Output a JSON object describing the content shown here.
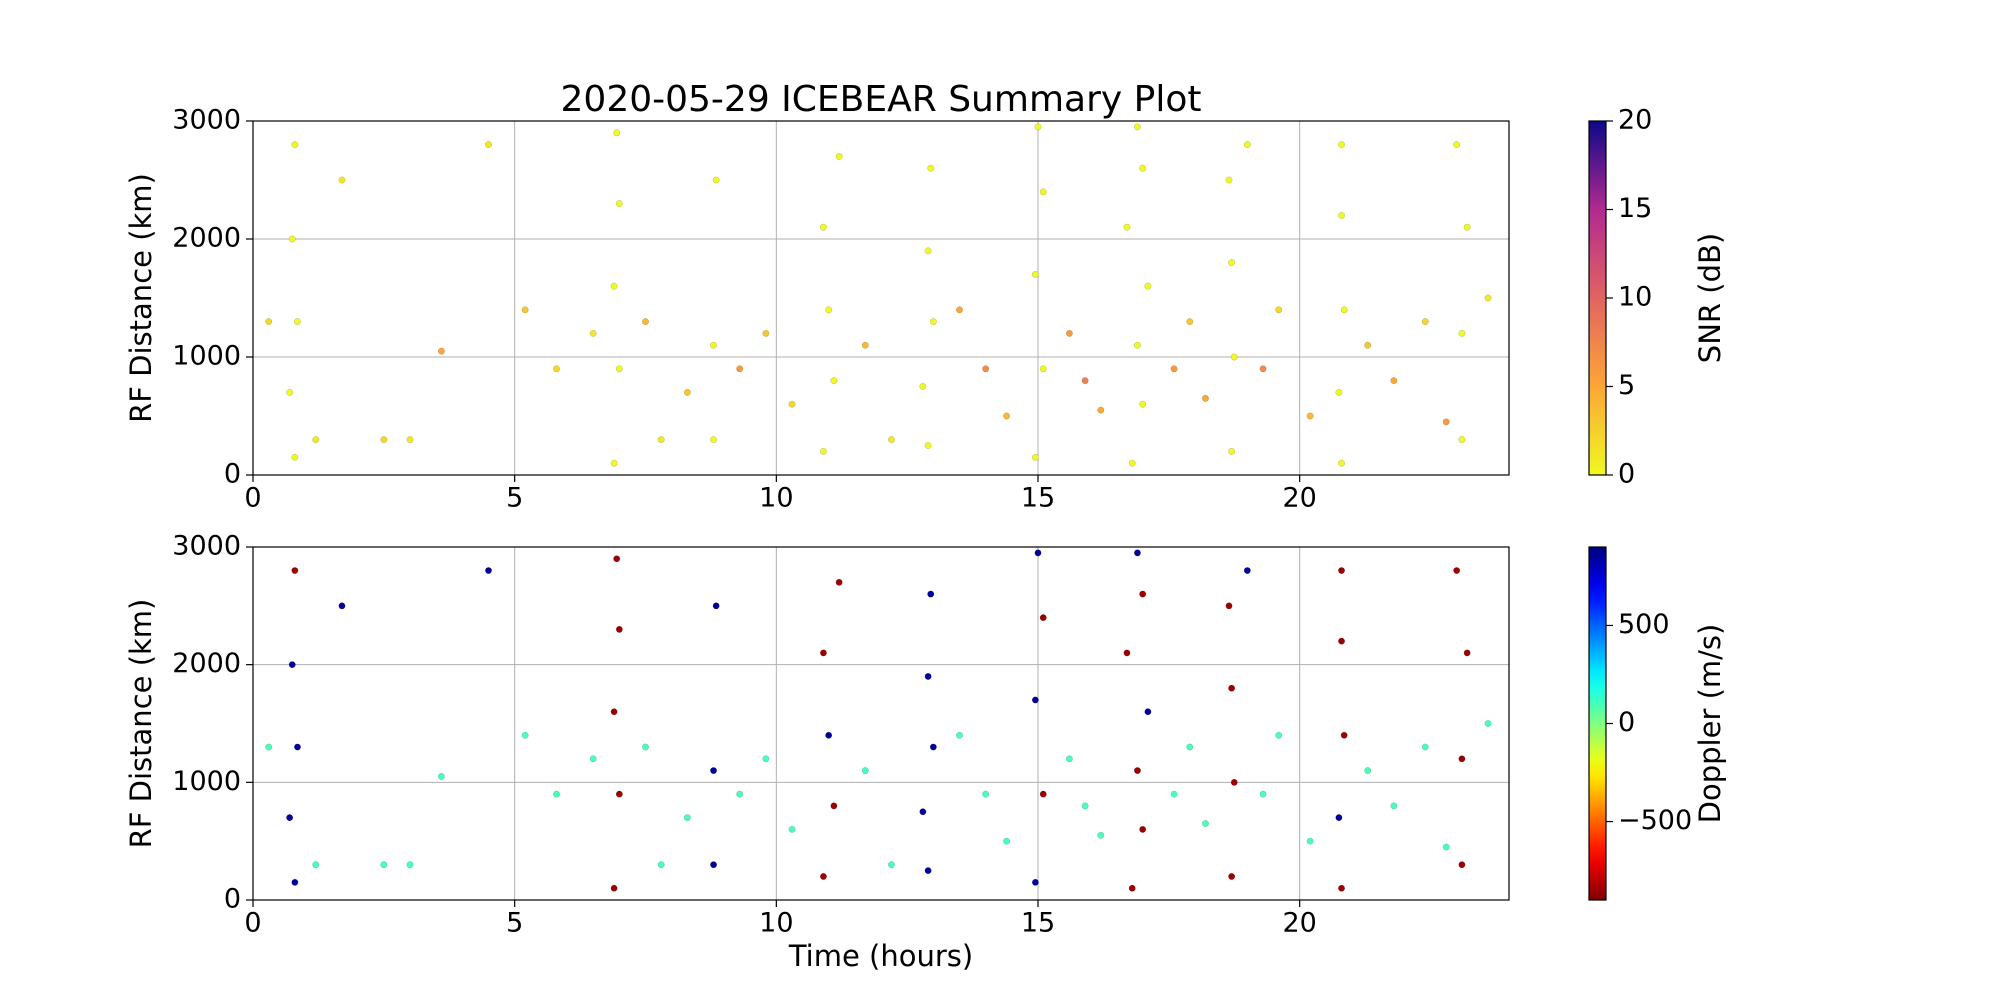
{
  "chart_data": [
    {
      "type": "scatter",
      "title": "2020-05-29 ICEBEAR Summary Plot",
      "ylabel": "RF Distance (km)",
      "x": [
        0.8,
        0.7,
        0.85,
        0.75,
        0.8,
        6.9,
        7.0,
        6.9,
        7.0,
        6.95,
        8.8,
        8.8,
        8.85,
        10.9,
        11.1,
        11.0,
        10.9,
        11.2,
        12.9,
        12.8,
        13.0,
        12.9,
        12.95,
        14.95,
        15.1,
        14.95,
        15.1,
        15.0,
        16.8,
        17.0,
        16.9,
        17.1,
        16.7,
        17.0,
        16.9,
        18.7,
        18.75,
        18.7,
        18.65,
        20.8,
        20.75,
        20.85,
        20.8,
        20.8,
        23.1,
        23.1,
        23.2,
        23.0,
        1.7,
        2.5,
        3.0,
        3.6,
        4.5,
        5.2,
        5.8,
        6.5,
        7.5,
        7.8,
        8.3,
        9.3,
        9.8,
        10.3,
        11.7,
        12.2,
        13.5,
        14.0,
        14.4,
        15.6,
        15.9,
        16.2,
        17.6,
        17.9,
        18.2,
        19.3,
        19.6,
        20.2,
        21.3,
        21.8,
        22.4,
        22.8,
        23.6,
        0.3,
        1.2,
        19.0
      ],
      "y": [
        150,
        700,
        1300,
        2000,
        2800,
        100,
        900,
        1600,
        2300,
        2900,
        300,
        1100,
        2500,
        200,
        800,
        1400,
        2100,
        2700,
        250,
        750,
        1300,
        1900,
        2600,
        150,
        900,
        1700,
        2400,
        2950,
        100,
        600,
        1100,
        1600,
        2100,
        2600,
        2950,
        200,
        1000,
        1800,
        2500,
        100,
        700,
        1400,
        2200,
        2800,
        300,
        1200,
        2100,
        2800,
        2500,
        300,
        300,
        1050,
        2800,
        1400,
        900,
        1200,
        1300,
        300,
        700,
        900,
        1200,
        600,
        1100,
        300,
        1400,
        900,
        500,
        1200,
        800,
        550,
        900,
        1300,
        650,
        900,
        1400,
        500,
        1100,
        800,
        1300,
        450,
        1500,
        1300,
        300,
        2800
      ],
      "c": [
        0,
        0,
        0,
        0,
        0,
        0,
        0,
        0,
        0,
        0,
        0,
        0,
        0,
        0,
        0,
        0,
        0,
        0,
        0,
        0,
        0,
        0,
        0,
        0,
        0,
        0,
        0,
        0,
        0,
        0,
        0,
        0,
        0,
        0,
        0,
        0,
        0,
        0,
        0,
        0,
        0,
        0,
        0,
        0,
        0,
        0,
        0,
        0,
        1,
        2,
        1,
        5,
        1,
        3,
        2,
        1,
        4,
        1,
        3,
        6,
        3,
        2,
        4,
        1,
        5,
        7,
        4,
        6,
        8,
        5,
        6,
        3,
        5,
        7,
        2,
        4,
        3,
        5,
        2,
        6,
        1,
        2,
        1,
        0
      ],
      "xlim": [
        0,
        24
      ],
      "ylim": [
        0,
        3000
      ],
      "xticks": [
        0,
        5,
        10,
        15,
        20
      ],
      "yticks": [
        0,
        1000,
        2000,
        3000
      ],
      "grid": true,
      "colorbar": {
        "label": "SNR (dB)",
        "cmap": "plasma_r",
        "clim": [
          0,
          20
        ],
        "cticks": [
          0,
          5,
          10,
          15,
          20
        ]
      }
    },
    {
      "type": "scatter",
      "ylabel": "RF Distance (km)",
      "xlabel": "Time (hours)",
      "x": [
        0.8,
        0.7,
        0.85,
        0.75,
        0.8,
        6.9,
        7.0,
        6.9,
        7.0,
        6.95,
        8.8,
        8.8,
        8.85,
        10.9,
        11.1,
        11.0,
        10.9,
        11.2,
        12.9,
        12.8,
        13.0,
        12.9,
        12.95,
        14.95,
        15.1,
        14.95,
        15.1,
        15.0,
        16.8,
        17.0,
        16.9,
        17.1,
        16.7,
        17.0,
        16.9,
        18.7,
        18.75,
        18.7,
        18.65,
        20.8,
        20.75,
        20.85,
        20.8,
        20.8,
        23.1,
        23.1,
        23.2,
        23.0,
        1.7,
        2.5,
        3.0,
        3.6,
        4.5,
        5.2,
        5.8,
        6.5,
        7.5,
        7.8,
        8.3,
        9.3,
        9.8,
        10.3,
        11.7,
        12.2,
        13.5,
        14.0,
        14.4,
        15.6,
        15.9,
        16.2,
        17.6,
        17.9,
        18.2,
        19.3,
        19.6,
        20.2,
        21.3,
        21.8,
        22.4,
        22.8,
        23.6,
        0.3,
        1.2,
        19.0
      ],
      "y": [
        150,
        700,
        1300,
        2000,
        2800,
        100,
        900,
        1600,
        2300,
        2900,
        300,
        1100,
        2500,
        200,
        800,
        1400,
        2100,
        2700,
        250,
        750,
        1300,
        1900,
        2600,
        150,
        900,
        1700,
        2400,
        2950,
        100,
        600,
        1100,
        1600,
        2100,
        2600,
        2950,
        200,
        1000,
        1800,
        2500,
        100,
        700,
        1400,
        2200,
        2800,
        300,
        1200,
        2100,
        2800,
        2500,
        300,
        300,
        1050,
        2800,
        1400,
        900,
        1200,
        1300,
        300,
        700,
        900,
        1200,
        600,
        1100,
        300,
        1400,
        900,
        500,
        1200,
        800,
        550,
        900,
        1300,
        650,
        900,
        1400,
        500,
        1100,
        800,
        1300,
        450,
        1500,
        1300,
        300,
        2800
      ],
      "c": [
        850,
        850,
        850,
        850,
        -850,
        -850,
        -850,
        -850,
        -850,
        -850,
        850,
        850,
        850,
        -850,
        -850,
        850,
        -850,
        -850,
        850,
        850,
        850,
        850,
        850,
        850,
        -850,
        850,
        -850,
        850,
        -850,
        -850,
        -850,
        850,
        -850,
        -850,
        850,
        -850,
        -850,
        -850,
        -850,
        -850,
        850,
        -850,
        -850,
        -850,
        -850,
        -850,
        -850,
        -850,
        850,
        100,
        100,
        100,
        850,
        100,
        100,
        100,
        100,
        100,
        100,
        100,
        100,
        100,
        100,
        100,
        100,
        100,
        100,
        100,
        100,
        100,
        100,
        100,
        100,
        100,
        100,
        100,
        100,
        100,
        100,
        100,
        100,
        100,
        100,
        850
      ],
      "xlim": [
        0,
        24
      ],
      "ylim": [
        0,
        3000
      ],
      "xticks": [
        0,
        5,
        10,
        15,
        20
      ],
      "yticks": [
        0,
        1000,
        2000,
        3000
      ],
      "grid": true,
      "colorbar": {
        "label": "Doppler (m/s)",
        "cmap": "jet_r",
        "clim": [
          -900,
          900
        ],
        "cticks": [
          {
            "value": -500,
            "label": "−500"
          },
          0,
          500
        ]
      }
    }
  ]
}
